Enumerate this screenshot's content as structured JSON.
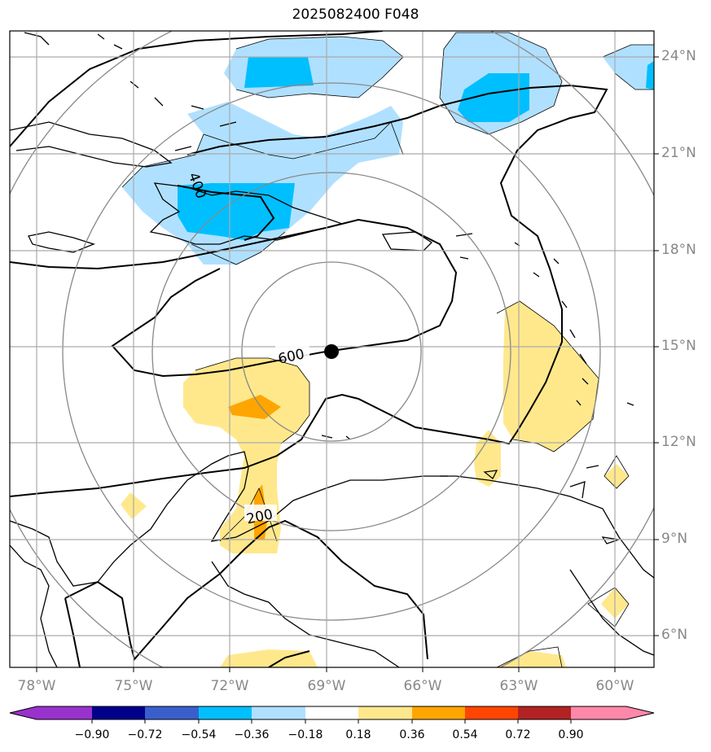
{
  "title": "2025082400 F048",
  "lat_ticks": [
    "24°N",
    "21°N",
    "18°N",
    "15°N",
    "12°N",
    "9°N",
    "6°N"
  ],
  "lon_ticks": [
    "78°W",
    "75°W",
    "72°W",
    "69°W",
    "66°W",
    "63°W",
    "60°W"
  ],
  "contour_labels": [
    "400",
    "600",
    "200"
  ],
  "colorbar": {
    "ticks": [
      "−0.90",
      "−0.72",
      "−0.54",
      "−0.36",
      "−0.18",
      "0.18",
      "0.36",
      "0.54",
      "0.72",
      "0.90"
    ],
    "colors": [
      "#9932cc",
      "#00008b",
      "#3a5fcd",
      "#00bfff",
      "#b0e0ff",
      "#ffffff",
      "#ffe88c",
      "#ffa500",
      "#ff4500",
      "#b22222",
      "#ff88aa"
    ]
  },
  "center_marker": {
    "lat": 14.8,
    "lon": -68.8
  }
}
